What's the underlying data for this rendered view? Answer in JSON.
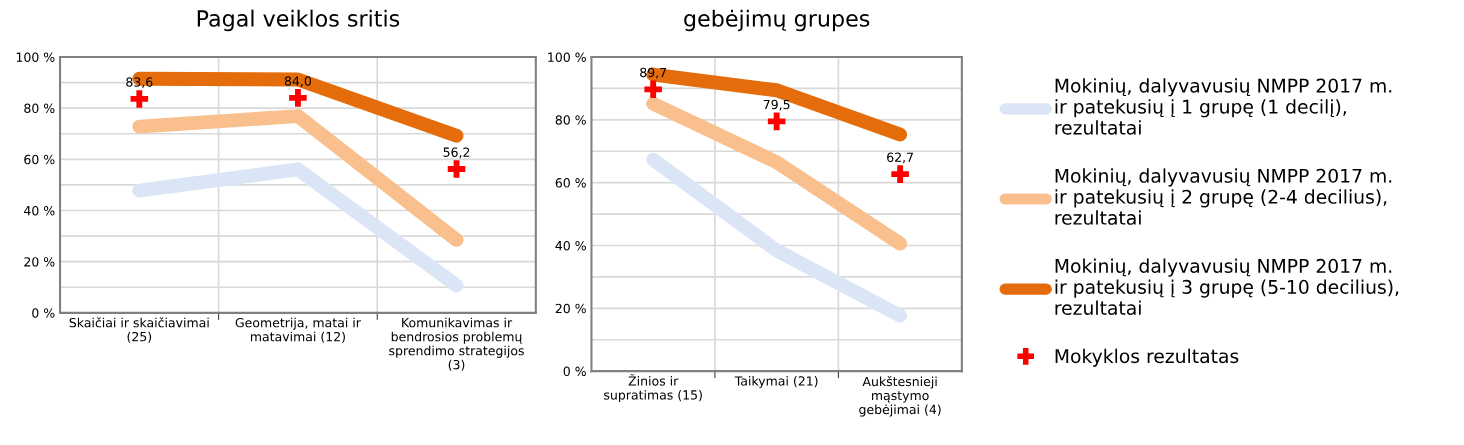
{
  "chart_data": [
    {
      "type": "line",
      "title": "Pagal veiklos sritis",
      "categories": [
        "Skaičiai ir skaičiavimai\n(25)",
        "Geometrija, matai ir\nmatavimai (12)",
        "Komunikavimas ir\nbendrosios problemų\nsprendimo strategijos\n(3)"
      ],
      "series": [
        {
          "name": "Mokinių, dalyvavusių NMPP 2017 m.\nir patekusių į 1 grupę (1 decilį),\nrezultatai",
          "color": "#dae6f6",
          "values": [
            47.8,
            56.1,
            10.7
          ]
        },
        {
          "name": "Mokinių, dalyvavusių NMPP 2017 m.\nir patekusių į 2 grupę (2-4 decilius),\nrezultatai",
          "color": "#f9c08e",
          "values": [
            72.8,
            76.9,
            28.5
          ]
        },
        {
          "name": "Mokinių, dalyvavusių NMPP 2017 m.\nir patekusių į 3 grupę (5-10 decilius),\nrezultatai",
          "color": "#e46c0a",
          "values": [
            91.5,
            91.2,
            69.2
          ]
        },
        {
          "name": "Mokyklos rezultatas",
          "type": "scatter",
          "marker": "cross",
          "color": "#ff0000",
          "values": [
            83.6,
            84.0,
            56.2
          ],
          "value_labels": [
            "83,6",
            "84,0",
            "56,2"
          ]
        }
      ],
      "ylim": [
        0,
        100
      ],
      "yticks": [
        {
          "value": 0,
          "label": "0 %"
        },
        {
          "value": 10,
          "label": null
        },
        {
          "value": 20,
          "label": "20 %"
        },
        {
          "value": 30,
          "label": null
        },
        {
          "value": 40,
          "label": "40 %"
        },
        {
          "value": 50,
          "label": null
        },
        {
          "value": 60,
          "label": "60 %"
        },
        {
          "value": 70,
          "label": null
        },
        {
          "value": 80,
          "label": "80 %"
        },
        {
          "value": 90,
          "label": null
        },
        {
          "value": 100,
          "label": "100 %"
        }
      ],
      "grid": true,
      "legend": "right"
    },
    {
      "type": "line",
      "title": "gebėjimų grupes",
      "categories": [
        "Žinios ir\nsupratimas (15)",
        "Taikymai (21)",
        "Aukštesnieji\nmąstymo\ngebėjimai (4)"
      ],
      "series": [
        {
          "color": "#dae6f6",
          "values": [
            67.3,
            38.4,
            17.7
          ]
        },
        {
          "color": "#f9c08e",
          "values": [
            85.1,
            66.5,
            40.6
          ]
        },
        {
          "color": "#e46c0a",
          "values": [
            94.4,
            89.4,
            75.3
          ]
        },
        {
          "type": "scatter",
          "marker": "cross",
          "color": "#ff0000",
          "values": [
            89.7,
            79.5,
            62.7
          ],
          "value_labels": [
            "89,7",
            "79,5",
            "62,7"
          ]
        }
      ],
      "ylim": [
        0,
        100
      ],
      "yticks": [
        {
          "value": 0,
          "label": "0 %"
        },
        {
          "value": 10,
          "label": null
        },
        {
          "value": 20,
          "label": "20 %"
        },
        {
          "value": 30,
          "label": null
        },
        {
          "value": 40,
          "label": "40 %"
        },
        {
          "value": 50,
          "label": null
        },
        {
          "value": 60,
          "label": "60 %"
        },
        {
          "value": 70,
          "label": null
        },
        {
          "value": 80,
          "label": "80 %"
        },
        {
          "value": 90,
          "label": null
        },
        {
          "value": 100,
          "label": "100 %"
        }
      ],
      "grid": true
    }
  ]
}
